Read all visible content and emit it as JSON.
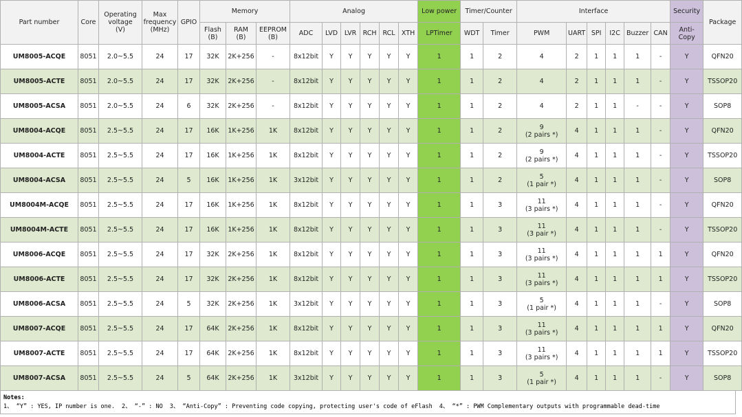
{
  "header": {
    "columns": [
      {
        "label": "Part number"
      },
      {
        "label": "Core"
      },
      {
        "label": "Operating\nvoltage\n(V)"
      },
      {
        "label": "Max\nfrequency\n(MHz)"
      },
      {
        "label": "GPIO"
      },
      {
        "label": "Memory",
        "sub": [
          "Flash\n(B)",
          "RAM\n(B)",
          "EEPROM\n(B)"
        ]
      },
      {
        "label": "Analog",
        "sub": [
          "ADC",
          "LVD",
          "LVR",
          "RCH",
          "RCL",
          "XTH"
        ]
      },
      {
        "label": "Low power",
        "sub": [
          "LPTimer"
        ]
      },
      {
        "label": "Timer/Counter",
        "sub": [
          "WDT",
          "Timer"
        ]
      },
      {
        "label": "Interface",
        "sub": [
          "PWM",
          "UART",
          "SPI",
          "I2C",
          "Buzzer",
          "CAN"
        ]
      },
      {
        "label": "Security",
        "sub": [
          "Anti-\nCopy"
        ]
      },
      {
        "label": "Package"
      }
    ]
  },
  "table": {
    "rows": [
      [
        "UM8005-ACQE",
        "8051",
        "2.0~5.5",
        "24",
        "17",
        "32K",
        "2K+256",
        "-",
        "8x12bit",
        "Y",
        "Y",
        "Y",
        "Y",
        "Y",
        "1",
        "1",
        "2",
        "4",
        "2",
        "1",
        "1",
        "1",
        "-",
        "Y",
        "QFN20"
      ],
      [
        "UM8005-ACTE",
        "8051",
        "2.0~5.5",
        "24",
        "17",
        "32K",
        "2K+256",
        "-",
        "8x12bit",
        "Y",
        "Y",
        "Y",
        "Y",
        "Y",
        "1",
        "1",
        "2",
        "4",
        "2",
        "1",
        "1",
        "1",
        "-",
        "Y",
        "TSSOP20"
      ],
      [
        "UM8005-ACSA",
        "8051",
        "2.0~5.5",
        "24",
        "6",
        "32K",
        "2K+256",
        "-",
        "8x12bit",
        "Y",
        "Y",
        "Y",
        "Y",
        "Y",
        "1",
        "1",
        "2",
        "4",
        "2",
        "1",
        "1",
        "-",
        "-",
        "Y",
        "SOP8"
      ],
      [
        "UM8004-ACQE",
        "8051",
        "2.5~5.5",
        "24",
        "17",
        "16K",
        "1K+256",
        "1K",
        "8x12bit",
        "Y",
        "Y",
        "Y",
        "Y",
        "Y",
        "1",
        "1",
        "2",
        "9\n(2 pairs *)",
        "4",
        "1",
        "1",
        "1",
        "-",
        "Y",
        "QFN20"
      ],
      [
        "UM8004-ACTE",
        "8051",
        "2.5~5.5",
        "24",
        "17",
        "16K",
        "1K+256",
        "1K",
        "8x12bit",
        "Y",
        "Y",
        "Y",
        "Y",
        "Y",
        "1",
        "1",
        "2",
        "9\n(2 pairs *)",
        "4",
        "1",
        "1",
        "1",
        "-",
        "Y",
        "TSSOP20"
      ],
      [
        "UM8004-ACSA",
        "8051",
        "2.5~5.5",
        "24",
        "5",
        "16K",
        "1K+256",
        "1K",
        "3x12bit",
        "Y",
        "Y",
        "Y",
        "Y",
        "Y",
        "1",
        "1",
        "2",
        "5\n(1 pair *)",
        "4",
        "1",
        "1",
        "1",
        "-",
        "Y",
        "SOP8"
      ],
      [
        "UM8004M-ACQE",
        "8051",
        "2.5~5.5",
        "24",
        "17",
        "16K",
        "1K+256",
        "1K",
        "8x12bit",
        "Y",
        "Y",
        "Y",
        "Y",
        "Y",
        "1",
        "1",
        "3",
        "11\n(3 pairs *)",
        "4",
        "1",
        "1",
        "1",
        "-",
        "Y",
        "QFN20"
      ],
      [
        "UM8004M-ACTE",
        "8051",
        "2.5~5.5",
        "24",
        "17",
        "16K",
        "1K+256",
        "1K",
        "8x12bit",
        "Y",
        "Y",
        "Y",
        "Y",
        "Y",
        "1",
        "1",
        "3",
        "11\n(3 pair *)",
        "4",
        "1",
        "1",
        "1",
        "-",
        "Y",
        "TSSOP20"
      ],
      [
        "UM8006-ACQE",
        "8051",
        "2.5~5.5",
        "24",
        "17",
        "32K",
        "2K+256",
        "1K",
        "8x12bit",
        "Y",
        "Y",
        "Y",
        "Y",
        "Y",
        "1",
        "1",
        "3",
        "11\n(3 pairs *)",
        "4",
        "1",
        "1",
        "1",
        "1",
        "Y",
        "QFN20"
      ],
      [
        "UM8006-ACTE",
        "8051",
        "2.5~5.5",
        "24",
        "17",
        "32K",
        "2K+256",
        "1K",
        "8x12bit",
        "Y",
        "Y",
        "Y",
        "Y",
        "Y",
        "1",
        "1",
        "3",
        "11\n(3 pairs *)",
        "4",
        "1",
        "1",
        "1",
        "1",
        "Y",
        "TSSOP20"
      ],
      [
        "UM8006-ACSA",
        "8051",
        "2.5~5.5",
        "24",
        "5",
        "32K",
        "2K+256",
        "1K",
        "3x12bit",
        "Y",
        "Y",
        "Y",
        "Y",
        "Y",
        "1",
        "1",
        "3",
        "5\n(1 pair *)",
        "4",
        "1",
        "1",
        "1",
        "-",
        "Y",
        "SOP8"
      ],
      [
        "UM8007-ACQE",
        "8051",
        "2.5~5.5",
        "24",
        "17",
        "64K",
        "2K+256",
        "1K",
        "8x12bit",
        "Y",
        "Y",
        "Y",
        "Y",
        "Y",
        "1",
        "1",
        "3",
        "11\n(3 pairs *)",
        "4",
        "1",
        "1",
        "1",
        "1",
        "Y",
        "QFN20"
      ],
      [
        "UM8007-ACTE",
        "8051",
        "2.5~5.5",
        "24",
        "17",
        "64K",
        "2K+256",
        "1K",
        "8x12bit",
        "Y",
        "Y",
        "Y",
        "Y",
        "Y",
        "1",
        "1",
        "3",
        "11\n(3 pairs *)",
        "4",
        "1",
        "1",
        "1",
        "1",
        "Y",
        "TSSOP20"
      ],
      [
        "UM8007-ACSA",
        "8051",
        "2.5~5.5",
        "24",
        "5",
        "64K",
        "2K+256",
        "1K",
        "3x12bit",
        "Y",
        "Y",
        "Y",
        "Y",
        "Y",
        "1",
        "1",
        "3",
        "5\n(1 pair *)",
        "4",
        "1",
        "1",
        "1",
        "-",
        "Y",
        "SOP8"
      ]
    ]
  },
  "notes": {
    "title": "Notes:",
    "items": [
      "1、 “Y” : YES, IP number is one.",
      "2、 “-” : NO",
      "3、 “Anti-Copy” : Preventing code copying, protecting user's code of eFlash",
      "4、 “*” : PWM Complementary outputs with programmable dead-time"
    ]
  }
}
